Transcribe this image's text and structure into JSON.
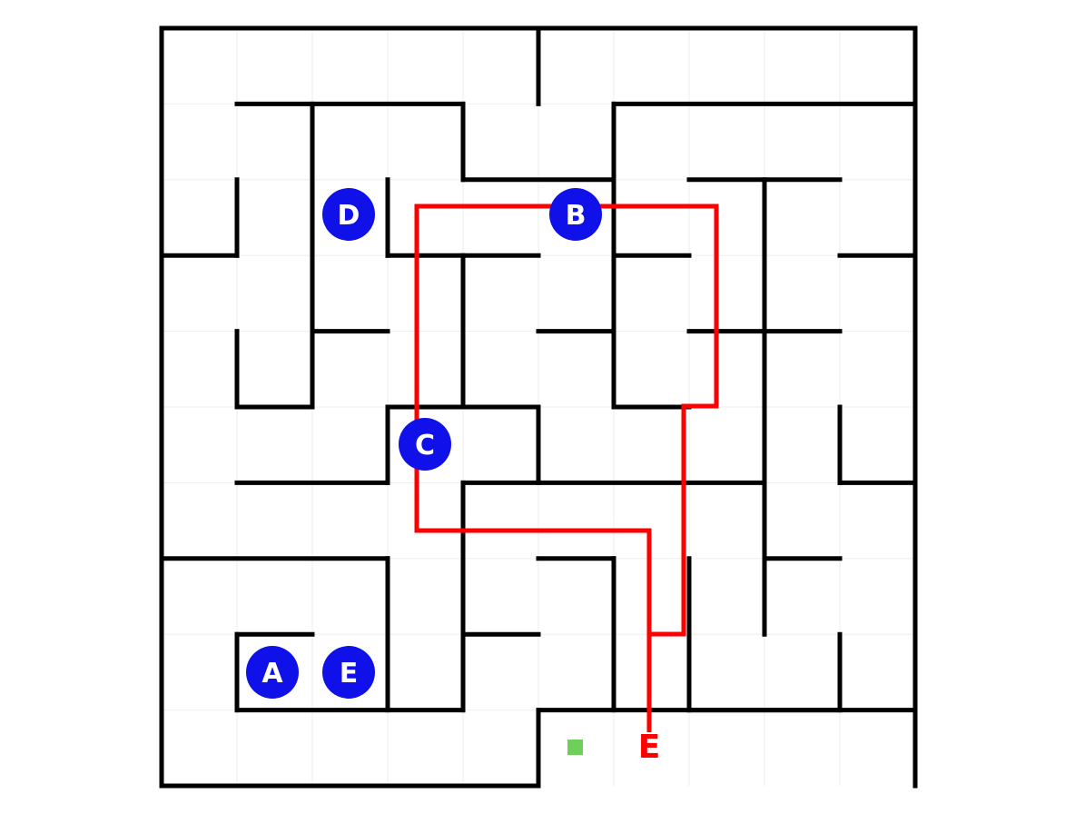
{
  "game": {
    "type": "maze",
    "grid": {
      "columns": 10,
      "rows": 10
    },
    "colors": {
      "background": "#ffffff",
      "gridline": "#eeeeee",
      "wall": "#000000",
      "marker_fill": "#1010e8",
      "marker_text": "#ffffff",
      "path": "#ff0000",
      "goal": "#6fcf5a"
    },
    "markers": [
      {
        "id": "A",
        "label": "A",
        "cell": [
          1,
          8
        ]
      },
      {
        "id": "E",
        "label": "E",
        "cell": [
          2,
          8
        ]
      },
      {
        "id": "D",
        "label": "D",
        "cell": [
          2,
          2
        ]
      },
      {
        "id": "B",
        "label": "B",
        "cell": [
          5.5,
          2
        ]
      },
      {
        "id": "C",
        "label": "C",
        "cell": [
          3.5,
          5
        ]
      }
    ],
    "goal_marker": {
      "label": "goal",
      "cell": [
        5.5,
        9
      ]
    },
    "path": {
      "end_label": "E",
      "cells": [
        [
          6.5,
          9.5
        ],
        [
          6.5,
          8
        ],
        [
          7,
          8
        ],
        [
          7,
          5
        ],
        [
          7.5,
          5
        ],
        [
          7.5,
          2.3
        ],
        [
          3.3,
          2.3
        ],
        [
          3.3,
          6.6
        ],
        [
          6.5,
          6.6
        ],
        [
          6.5,
          9.5
        ]
      ]
    }
  }
}
